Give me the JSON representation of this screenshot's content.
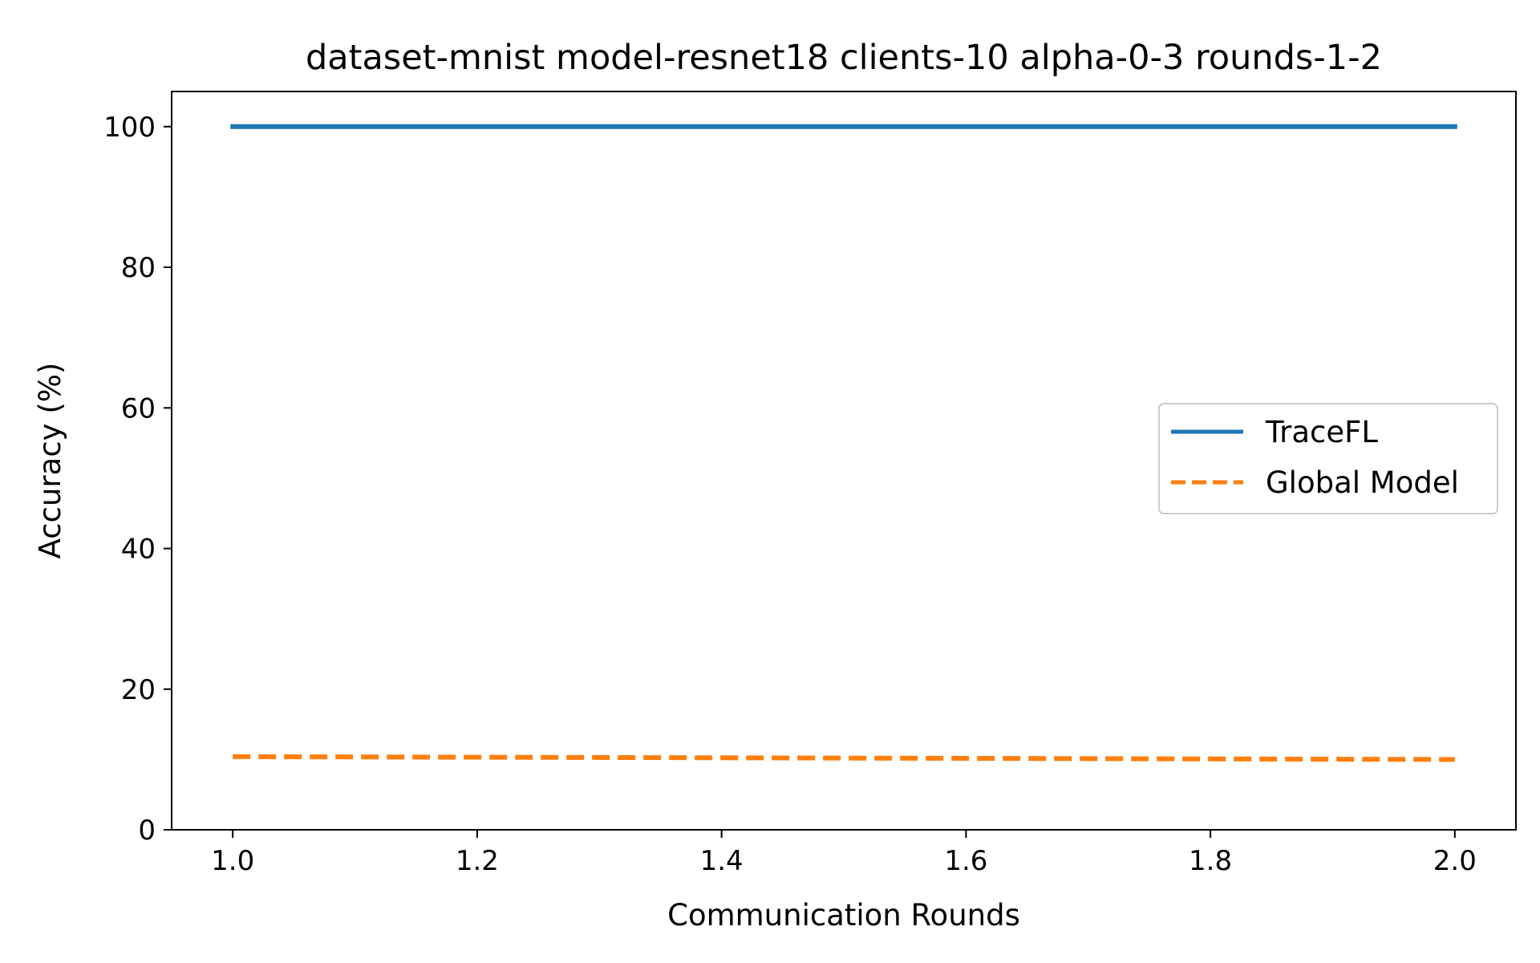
{
  "chart_data": {
    "type": "line",
    "title": "dataset-mnist model-resnet18 clients-10 alpha-0-3 rounds-1-2",
    "xlabel": "Communication Rounds",
    "ylabel": "Accuracy (%)",
    "xlim": [
      0.95,
      2.05
    ],
    "ylim": [
      0,
      105
    ],
    "xticks": [
      1.0,
      1.2,
      1.4,
      1.6,
      1.8,
      2.0
    ],
    "xtick_labels": [
      "1.0",
      "1.2",
      "1.4",
      "1.6",
      "1.8",
      "2.0"
    ],
    "yticks": [
      0,
      20,
      40,
      60,
      80,
      100
    ],
    "ytick_labels": [
      "0",
      "20",
      "40",
      "60",
      "80",
      "100"
    ],
    "grid": false,
    "legend_position": "center-right",
    "series": [
      {
        "name": "TraceFL",
        "x": [
          1,
          2
        ],
        "y": [
          100,
          100
        ],
        "color": "#1f77b4",
        "linestyle": "solid"
      },
      {
        "name": "Global Model",
        "x": [
          1,
          2
        ],
        "y": [
          10.4,
          10.0
        ],
        "color": "#ff7f0e",
        "linestyle": "dashed"
      }
    ]
  }
}
